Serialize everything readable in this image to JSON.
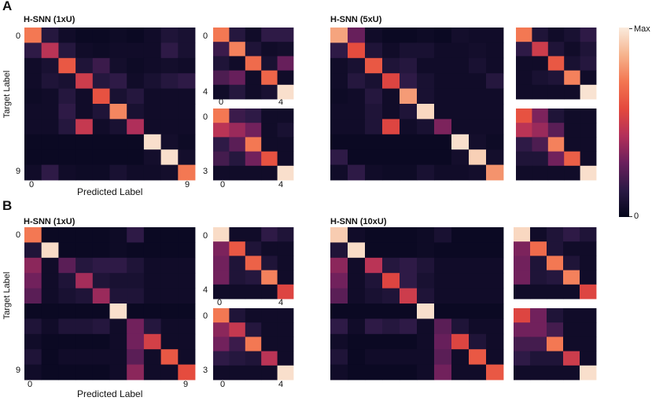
{
  "panel_labels": {
    "a": "A",
    "b": "B"
  },
  "colorbar": {
    "max_label": "Max",
    "min_label": "0",
    "stops": [
      "#03051a",
      "#2b1a45",
      "#6a1f5c",
      "#b3305a",
      "#e4493d",
      "#f37651",
      "#f6b48e",
      "#faebdd"
    ]
  },
  "axis": {
    "xlabel": "Predicted Label",
    "ylabel": "Target Label",
    "tick0": "0",
    "tick9": "9",
    "tick4": "4",
    "tick3": "3"
  },
  "chart_data": [
    {
      "type": "heatmap",
      "title": "H-SNN (1xU)",
      "panel": "A",
      "size": 10,
      "values": [
        [
          0.72,
          0.12,
          0.05,
          0.03,
          0.03,
          0.04,
          0.03,
          0.05,
          0.1,
          0.08
        ],
        [
          0.15,
          0.45,
          0.12,
          0.05,
          0.04,
          0.05,
          0.05,
          0.05,
          0.15,
          0.08
        ],
        [
          0.05,
          0.08,
          0.62,
          0.1,
          0.18,
          0.06,
          0.04,
          0.05,
          0.06,
          0.05
        ],
        [
          0.05,
          0.1,
          0.08,
          0.5,
          0.12,
          0.15,
          0.05,
          0.08,
          0.12,
          0.15
        ],
        [
          0.04,
          0.05,
          0.12,
          0.05,
          0.6,
          0.08,
          0.12,
          0.05,
          0.05,
          0.05
        ],
        [
          0.05,
          0.05,
          0.15,
          0.05,
          0.1,
          0.75,
          0.08,
          0.05,
          0.05,
          0.05
        ],
        [
          0.05,
          0.05,
          0.12,
          0.48,
          0.05,
          0.08,
          0.42,
          0.05,
          0.05,
          0.05
        ],
        [
          0.03,
          0.03,
          0.03,
          0.03,
          0.03,
          0.03,
          0.03,
          0.97,
          0.06,
          0.04
        ],
        [
          0.03,
          0.03,
          0.03,
          0.03,
          0.03,
          0.03,
          0.03,
          0.06,
          0.97,
          0.06
        ],
        [
          0.05,
          0.15,
          0.05,
          0.04,
          0.04,
          0.08,
          0.05,
          0.05,
          0.06,
          0.72
        ]
      ]
    },
    {
      "type": "heatmap",
      "title": "",
      "panel": "A",
      "size": 5,
      "values": [
        [
          0.72,
          0.12,
          0.05,
          0.15,
          0.15
        ],
        [
          0.18,
          0.74,
          0.1,
          0.05,
          0.06
        ],
        [
          0.1,
          0.05,
          0.68,
          0.08,
          0.28
        ],
        [
          0.22,
          0.28,
          0.05,
          0.66,
          0.05
        ],
        [
          0.05,
          0.12,
          0.05,
          0.08,
          0.97
        ]
      ]
    },
    {
      "type": "heatmap",
      "title": "",
      "panel": "A",
      "size": 5,
      "values": [
        [
          0.72,
          0.18,
          0.15,
          0.05,
          0.05
        ],
        [
          0.45,
          0.38,
          0.3,
          0.05,
          0.08
        ],
        [
          0.15,
          0.25,
          0.72,
          0.05,
          0.05
        ],
        [
          0.2,
          0.12,
          0.3,
          0.6,
          0.05
        ],
        [
          0.05,
          0.05,
          0.05,
          0.05,
          0.97
        ]
      ]
    },
    {
      "type": "heatmap",
      "title": "H-SNN (5xU)",
      "panel": "A",
      "size": 10,
      "values": [
        [
          0.82,
          0.28,
          0.05,
          0.03,
          0.03,
          0.04,
          0.03,
          0.06,
          0.05,
          0.05
        ],
        [
          0.15,
          0.58,
          0.1,
          0.05,
          0.08,
          0.08,
          0.05,
          0.05,
          0.06,
          0.05
        ],
        [
          0.05,
          0.08,
          0.62,
          0.1,
          0.12,
          0.05,
          0.05,
          0.05,
          0.08,
          0.05
        ],
        [
          0.05,
          0.12,
          0.08,
          0.55,
          0.15,
          0.08,
          0.05,
          0.05,
          0.05,
          0.12
        ],
        [
          0.04,
          0.05,
          0.12,
          0.05,
          0.8,
          0.08,
          0.05,
          0.05,
          0.05,
          0.05
        ],
        [
          0.05,
          0.05,
          0.1,
          0.05,
          0.1,
          0.95,
          0.05,
          0.05,
          0.05,
          0.05
        ],
        [
          0.05,
          0.05,
          0.1,
          0.55,
          0.05,
          0.08,
          0.32,
          0.05,
          0.05,
          0.05
        ],
        [
          0.03,
          0.03,
          0.03,
          0.03,
          0.03,
          0.03,
          0.03,
          0.97,
          0.06,
          0.04
        ],
        [
          0.15,
          0.03,
          0.03,
          0.03,
          0.03,
          0.03,
          0.03,
          0.06,
          0.93,
          0.06
        ],
        [
          0.05,
          0.15,
          0.05,
          0.04,
          0.04,
          0.08,
          0.05,
          0.05,
          0.06,
          0.78
        ]
      ]
    },
    {
      "type": "heatmap",
      "title": "",
      "panel": "A",
      "size": 5,
      "values": [
        [
          0.72,
          0.1,
          0.05,
          0.08,
          0.15
        ],
        [
          0.15,
          0.5,
          0.1,
          0.05,
          0.1
        ],
        [
          0.05,
          0.05,
          0.62,
          0.08,
          0.12
        ],
        [
          0.05,
          0.08,
          0.1,
          0.74,
          0.05
        ],
        [
          0.05,
          0.05,
          0.05,
          0.05,
          0.98
        ]
      ]
    },
    {
      "type": "heatmap",
      "title": "",
      "panel": "A",
      "size": 5,
      "values": [
        [
          0.6,
          0.32,
          0.1,
          0.05,
          0.05
        ],
        [
          0.45,
          0.38,
          0.25,
          0.05,
          0.05
        ],
        [
          0.15,
          0.22,
          0.74,
          0.05,
          0.05
        ],
        [
          0.1,
          0.1,
          0.3,
          0.64,
          0.05
        ],
        [
          0.05,
          0.05,
          0.05,
          0.05,
          0.97
        ]
      ]
    },
    {
      "type": "heatmap",
      "title": "H-SNN (1xU)",
      "panel": "B",
      "size": 10,
      "values": [
        [
          0.72,
          0.03,
          0.03,
          0.03,
          0.03,
          0.04,
          0.15,
          0.03,
          0.03,
          0.03
        ],
        [
          0.1,
          0.96,
          0.03,
          0.03,
          0.03,
          0.04,
          0.03,
          0.03,
          0.03,
          0.03
        ],
        [
          0.35,
          0.05,
          0.25,
          0.12,
          0.15,
          0.15,
          0.1,
          0.05,
          0.05,
          0.05
        ],
        [
          0.3,
          0.05,
          0.1,
          0.4,
          0.1,
          0.08,
          0.08,
          0.05,
          0.05,
          0.05
        ],
        [
          0.25,
          0.05,
          0.08,
          0.1,
          0.38,
          0.1,
          0.1,
          0.05,
          0.05,
          0.05
        ],
        [
          0.03,
          0.03,
          0.03,
          0.03,
          0.03,
          0.97,
          0.03,
          0.03,
          0.03,
          0.03
        ],
        [
          0.1,
          0.05,
          0.1,
          0.1,
          0.12,
          0.05,
          0.3,
          0.12,
          0.05,
          0.05
        ],
        [
          0.05,
          0.03,
          0.03,
          0.03,
          0.03,
          0.05,
          0.3,
          0.52,
          0.05,
          0.05
        ],
        [
          0.1,
          0.03,
          0.05,
          0.05,
          0.05,
          0.05,
          0.25,
          0.05,
          0.62,
          0.05
        ],
        [
          0.05,
          0.03,
          0.03,
          0.03,
          0.03,
          0.05,
          0.35,
          0.05,
          0.05,
          0.58
        ]
      ]
    },
    {
      "type": "heatmap",
      "title": "",
      "panel": "B",
      "size": 5,
      "values": [
        [
          0.96,
          0.05,
          0.05,
          0.15,
          0.1
        ],
        [
          0.32,
          0.62,
          0.1,
          0.05,
          0.05
        ],
        [
          0.3,
          0.1,
          0.65,
          0.1,
          0.05
        ],
        [
          0.3,
          0.1,
          0.12,
          0.74,
          0.05
        ],
        [
          0.05,
          0.05,
          0.05,
          0.05,
          0.55
        ]
      ]
    },
    {
      "type": "heatmap",
      "title": "",
      "panel": "B",
      "size": 5,
      "values": [
        [
          0.72,
          0.1,
          0.05,
          0.05,
          0.05
        ],
        [
          0.35,
          0.48,
          0.12,
          0.05,
          0.05
        ],
        [
          0.3,
          0.18,
          0.72,
          0.05,
          0.05
        ],
        [
          0.15,
          0.12,
          0.1,
          0.45,
          0.05
        ],
        [
          0.05,
          0.05,
          0.05,
          0.05,
          0.97
        ]
      ]
    },
    {
      "type": "heatmap",
      "title": "H-SNN (10xU)",
      "panel": "B",
      "size": 10,
      "values": [
        [
          0.92,
          0.05,
          0.03,
          0.03,
          0.03,
          0.04,
          0.08,
          0.03,
          0.03,
          0.03
        ],
        [
          0.1,
          0.96,
          0.03,
          0.03,
          0.03,
          0.04,
          0.03,
          0.03,
          0.03,
          0.03
        ],
        [
          0.35,
          0.05,
          0.45,
          0.12,
          0.15,
          0.1,
          0.05,
          0.05,
          0.05,
          0.05
        ],
        [
          0.3,
          0.05,
          0.1,
          0.55,
          0.15,
          0.08,
          0.05,
          0.05,
          0.05,
          0.05
        ],
        [
          0.25,
          0.05,
          0.08,
          0.1,
          0.5,
          0.1,
          0.05,
          0.05,
          0.05,
          0.05
        ],
        [
          0.03,
          0.03,
          0.03,
          0.03,
          0.03,
          0.97,
          0.03,
          0.03,
          0.03,
          0.03
        ],
        [
          0.15,
          0.05,
          0.15,
          0.12,
          0.15,
          0.05,
          0.25,
          0.1,
          0.05,
          0.05
        ],
        [
          0.05,
          0.03,
          0.03,
          0.03,
          0.03,
          0.05,
          0.28,
          0.55,
          0.1,
          0.05
        ],
        [
          0.1,
          0.03,
          0.05,
          0.05,
          0.05,
          0.05,
          0.25,
          0.05,
          0.62,
          0.05
        ],
        [
          0.05,
          0.03,
          0.03,
          0.03,
          0.03,
          0.05,
          0.3,
          0.05,
          0.05,
          0.62
        ]
      ]
    },
    {
      "type": "heatmap",
      "title": "",
      "panel": "B",
      "size": 5,
      "values": [
        [
          0.95,
          0.05,
          0.1,
          0.15,
          0.1
        ],
        [
          0.32,
          0.68,
          0.1,
          0.05,
          0.05
        ],
        [
          0.3,
          0.1,
          0.72,
          0.1,
          0.05
        ],
        [
          0.3,
          0.1,
          0.12,
          0.74,
          0.05
        ],
        [
          0.05,
          0.05,
          0.05,
          0.05,
          0.55
        ]
      ]
    },
    {
      "type": "heatmap",
      "title": "",
      "panel": "B",
      "size": 5,
      "values": [
        [
          0.55,
          0.3,
          0.1,
          0.05,
          0.05
        ],
        [
          0.3,
          0.3,
          0.2,
          0.05,
          0.05
        ],
        [
          0.2,
          0.2,
          0.72,
          0.05,
          0.05
        ],
        [
          0.15,
          0.1,
          0.1,
          0.5,
          0.05
        ],
        [
          0.05,
          0.05,
          0.05,
          0.05,
          0.97
        ]
      ]
    }
  ]
}
